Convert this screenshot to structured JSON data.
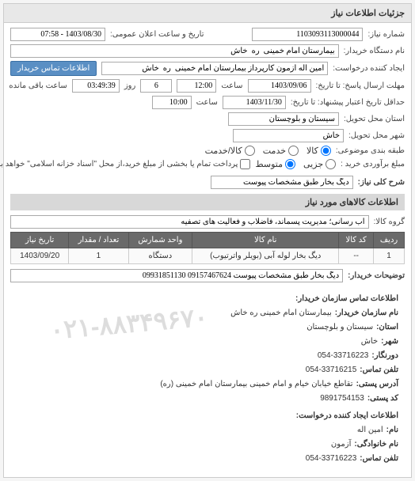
{
  "panel_title": "جزئیات اطلاعات نیاز",
  "form": {
    "number_label": "شماره نیاز:",
    "number_value": "1103093113000044",
    "announce_label": "تاریخ و ساعت اعلان عمومی:",
    "announce_value": "1403/08/30 - 07:58",
    "buyer_org_label": "نام دستگاه خریدار:",
    "buyer_org_value": "بیمارستان امام خمینی  ره  خاش",
    "requester_label": "ایجاد کننده درخواست:",
    "requester_value": "امین اله آزمون کارپرداز بیمارستان امام خمینی  ره  خاش",
    "contact_btn": "اطلاعات تماس خریدار",
    "deadline_label": "مهلت ارسال پاسخ: تا تاریخ:",
    "deadline_date": "1403/09/06",
    "time_label": "ساعت",
    "deadline_time": "12:00",
    "remain_days": "6",
    "day_label": "روز",
    "remain_time": "03:49:39",
    "remain_label": "ساعت باقی مانده",
    "validity_label": "حداقل تاریخ اعتبار پیشنهاد: تا تاریخ:",
    "validity_date": "1403/11/30",
    "validity_time": "10:00",
    "province_label": "استان محل تحویل:",
    "province_value": "سیستان و بلوچستان",
    "city_label": "شهر محل تحویل:",
    "city_value": "خاش",
    "category_label": "طبقه بندی موضوعی:",
    "cat_goods": "کالا",
    "cat_service": "خدمت",
    "cat_both": "کالا/خدمت",
    "purchase_amount_label": "مبلغ برآوردی خرید :",
    "amt_partial": "جزیی",
    "amt_medium": "متوسط",
    "amount_note": "پرداخت تمام یا بخشی از مبلغ خرید،از محل \"اسناد خزانه اسلامی\" خواهد بود.",
    "summary_label": "شرح کلی نیاز:",
    "summary_value": "دیگ بخار طبق مشخصات پیوست"
  },
  "goods": {
    "section_title": "اطلاعات کالاهای مورد نیاز",
    "group_label": "گروه کالا:",
    "group_value": "آب رسانی؛ مدیریت پسماند، فاضلاب و فعالیت های تصفیه",
    "columns": [
      "ردیف",
      "کد کالا",
      "نام کالا",
      "واحد شمارش",
      "تعداد / مقدار",
      "تاریخ نیاز"
    ],
    "rows": [
      [
        "1",
        "--",
        "دیگ بخار لوله آبی (بویلر واترتیوب)",
        "دستگاه",
        "1",
        "1403/09/20"
      ]
    ],
    "note_label": "توضیحات خریدار:",
    "note_value": "دیگ بخار طبق مشخصات پیوست 09157467624 09931851130"
  },
  "contact": {
    "header": "اطلاعات تماس سازمان خریدار:",
    "org_label": "نام سازمان خریدار:",
    "org_value": "بیمارستان امام خمینی ره خاش",
    "province_label": "استان:",
    "province_value": "سیستان و بلوچستان",
    "city_label": "شهر:",
    "city_value": "خاش",
    "phone_label": "دورنگار:",
    "phone_value": "054-33716223",
    "fax_label": "تلفن تماس:",
    "fax_value": "054-33716215",
    "address_label": "آدرس پستی:",
    "address_value": "تقاطع خیابان خیام و امام خمینی بیمارستان امام خمینی (ره)",
    "postal_label": "کد پستی:",
    "postal_value": "9891754153",
    "requester_header": "اطلاعات ایجاد کننده درخواست:",
    "name_label": "نام:",
    "name_value": "امین اله",
    "family_label": "نام خانوادگی:",
    "family_value": "آزمون",
    "rphone_label": "تلفن تماس:",
    "rphone_value": "054-33716223",
    "watermark": "۰۲۱-۸۸۳۴۹۶۷۰"
  }
}
